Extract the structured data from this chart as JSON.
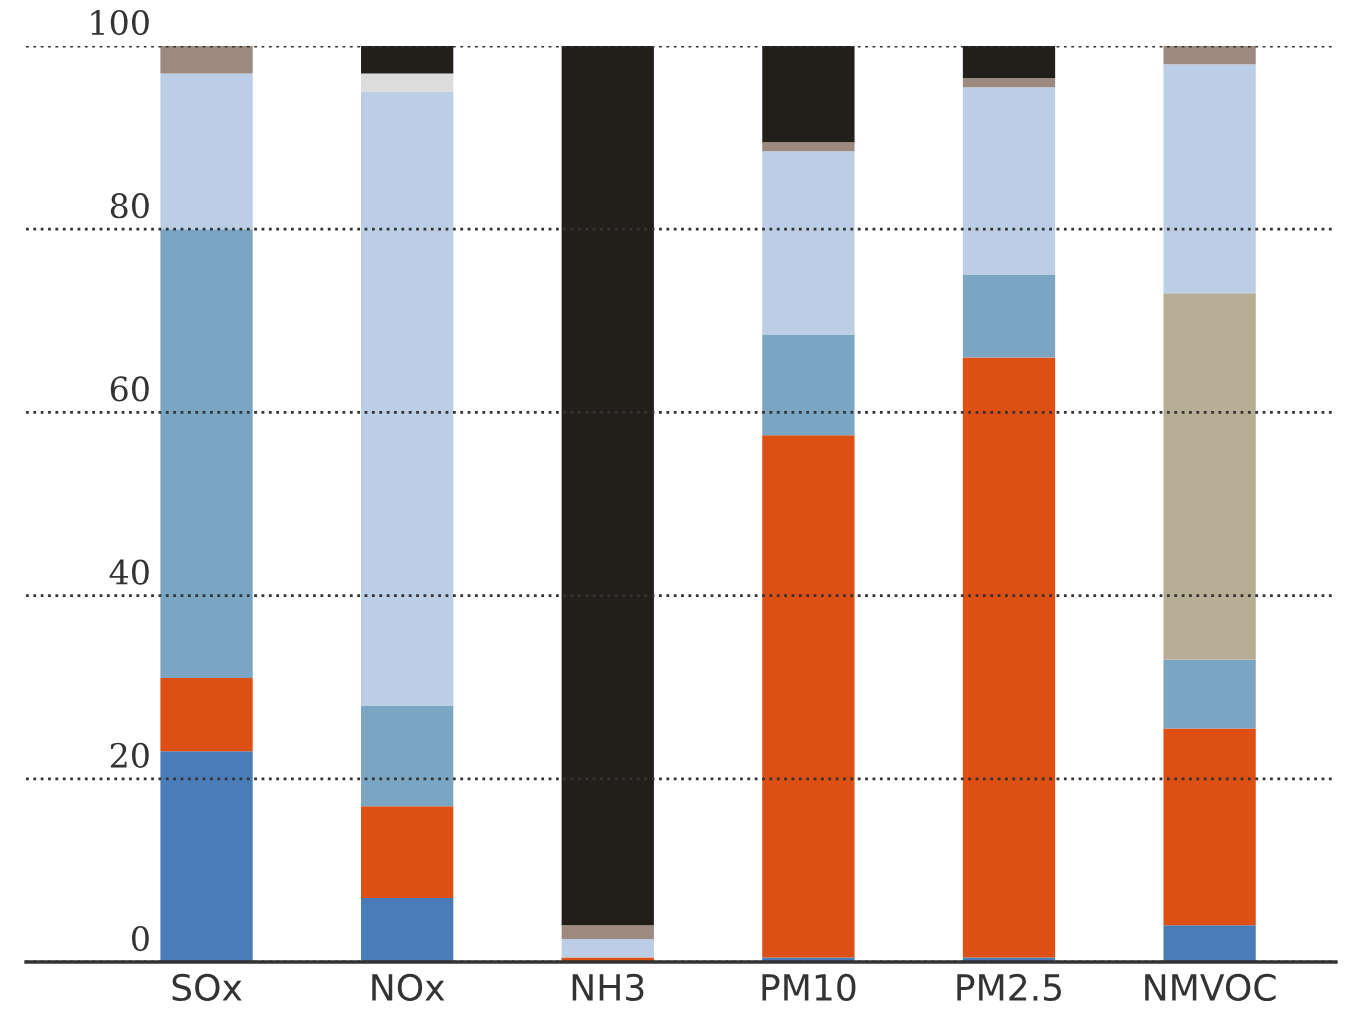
{
  "chart_data": {
    "type": "bar",
    "stacked": true,
    "categories": [
      "SOx",
      "NOx",
      "NH3",
      "PM10",
      "PM2.5",
      "NMVOC"
    ],
    "series": [
      {
        "color": "#4a7db8",
        "values": [
          23,
          7,
          null,
          0.5,
          0.5,
          4
        ]
      },
      {
        "color": "#dd4f12",
        "values": [
          8,
          10,
          0.5,
          57,
          65.5,
          21.5
        ]
      },
      {
        "color": "#7aa6c4",
        "values": [
          49,
          11,
          null,
          11,
          9,
          7.5
        ]
      },
      {
        "color": "#b7ad95",
        "values": [
          null,
          null,
          null,
          null,
          null,
          40
        ]
      },
      {
        "color": "#bccde6",
        "values": [
          17,
          67,
          2,
          20,
          20.5,
          25
        ]
      },
      {
        "color": "#9c8a80",
        "values": [
          3,
          null,
          1.5,
          1,
          1,
          2
        ]
      },
      {
        "color": "#dcdcdc",
        "values": [
          null,
          2,
          null,
          null,
          null,
          null
        ]
      },
      {
        "color": "#221f1a",
        "values": [
          null,
          3,
          96,
          10.5,
          3.5,
          null
        ]
      }
    ],
    "ylim": [
      0,
      100
    ],
    "yticks": [
      0,
      20,
      40,
      60,
      80,
      100
    ],
    "grid": "y",
    "line_style": "dotted",
    "legend": false
  }
}
